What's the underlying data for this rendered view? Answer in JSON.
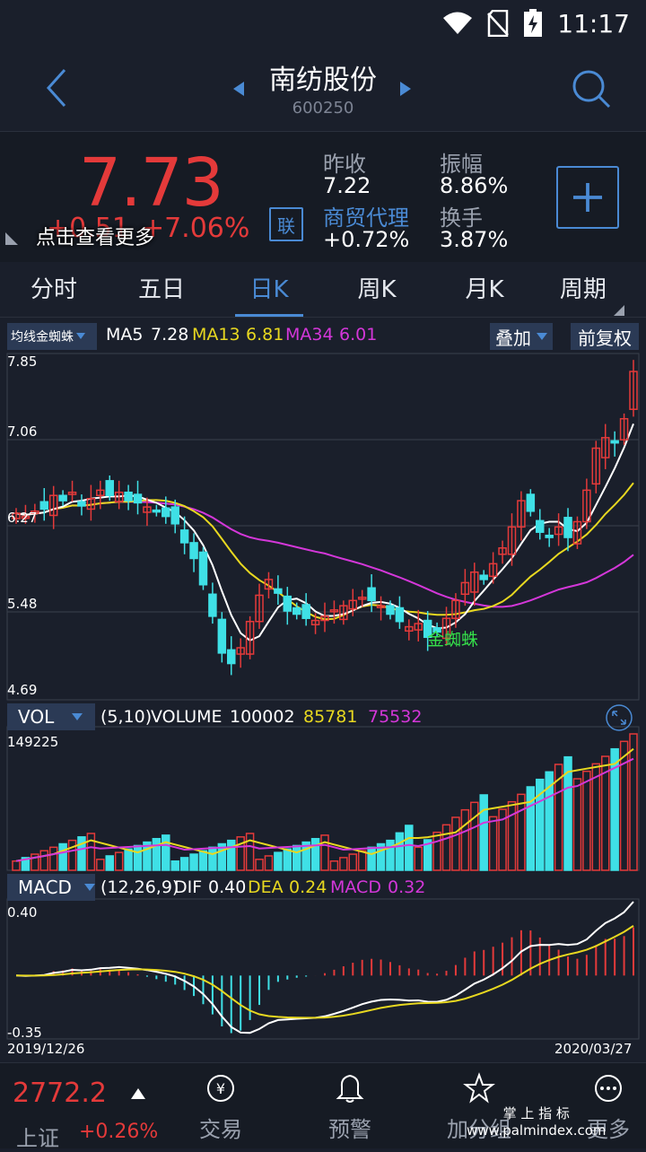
{
  "status": {
    "time": "11:17"
  },
  "header": {
    "title": "南纺股份",
    "code": "600250"
  },
  "quote": {
    "price": "7.73",
    "change": "+0.51",
    "change_pct": "+7.06%",
    "tip": "点击查看更多",
    "lian": "联",
    "prev_close_label": "昨收",
    "prev_close": "7.22",
    "amplitude_label": "振幅",
    "amplitude": "8.86%",
    "sector": "商贸代理",
    "sector_change": "+0.72%",
    "turnover_label": "换手",
    "turnover": "3.87%"
  },
  "tabs": [
    "分时",
    "五日",
    "日K",
    "周K",
    "月K",
    "周期"
  ],
  "ma_bar": {
    "indicator": "均线金蜘蛛",
    "ma5_label": "MA5",
    "ma5": "7.28",
    "ma13_label": "MA13",
    "ma13": "6.81",
    "ma34_label": "MA34",
    "ma34": "6.01",
    "overlay": "叠加",
    "adjust": "前复权"
  },
  "price_axis": [
    "7.85",
    "7.06",
    "6.27",
    "5.48",
    "4.69"
  ],
  "signal_label": "金蜘蛛",
  "vol_bar": {
    "name": "VOL",
    "params": "(5,10)",
    "volume_label": "VOLUME",
    "volume": "100002",
    "ma5": "85781",
    "ma10": "75532",
    "max": "149225"
  },
  "macd_bar": {
    "name": "MACD",
    "params": "(12,26,9)",
    "dif_label": "DIF",
    "dif": "0.40",
    "dea_label": "DEA",
    "dea": "0.24",
    "macd_label": "MACD",
    "macd": "0.32",
    "top": "0.40",
    "bottom": "-0.35"
  },
  "dates": {
    "start": "2019/12/26",
    "end": "2020/03/27"
  },
  "bottom": {
    "index_value": "2772.2",
    "index_name": "上证",
    "index_change": "+0.26%",
    "nav": [
      "交易",
      "预警",
      "加分组",
      "更多"
    ]
  },
  "watermark": {
    "line1": "掌 上 指 标",
    "line2": "www.palmindex.com"
  },
  "colors": {
    "up": "#e43a3a",
    "down": "#3fe0e6",
    "ma5": "#ffffff",
    "ma13": "#e8d820",
    "ma34": "#d437d9",
    "accent": "#4a8ad4",
    "signal": "#35e04a"
  }
}
